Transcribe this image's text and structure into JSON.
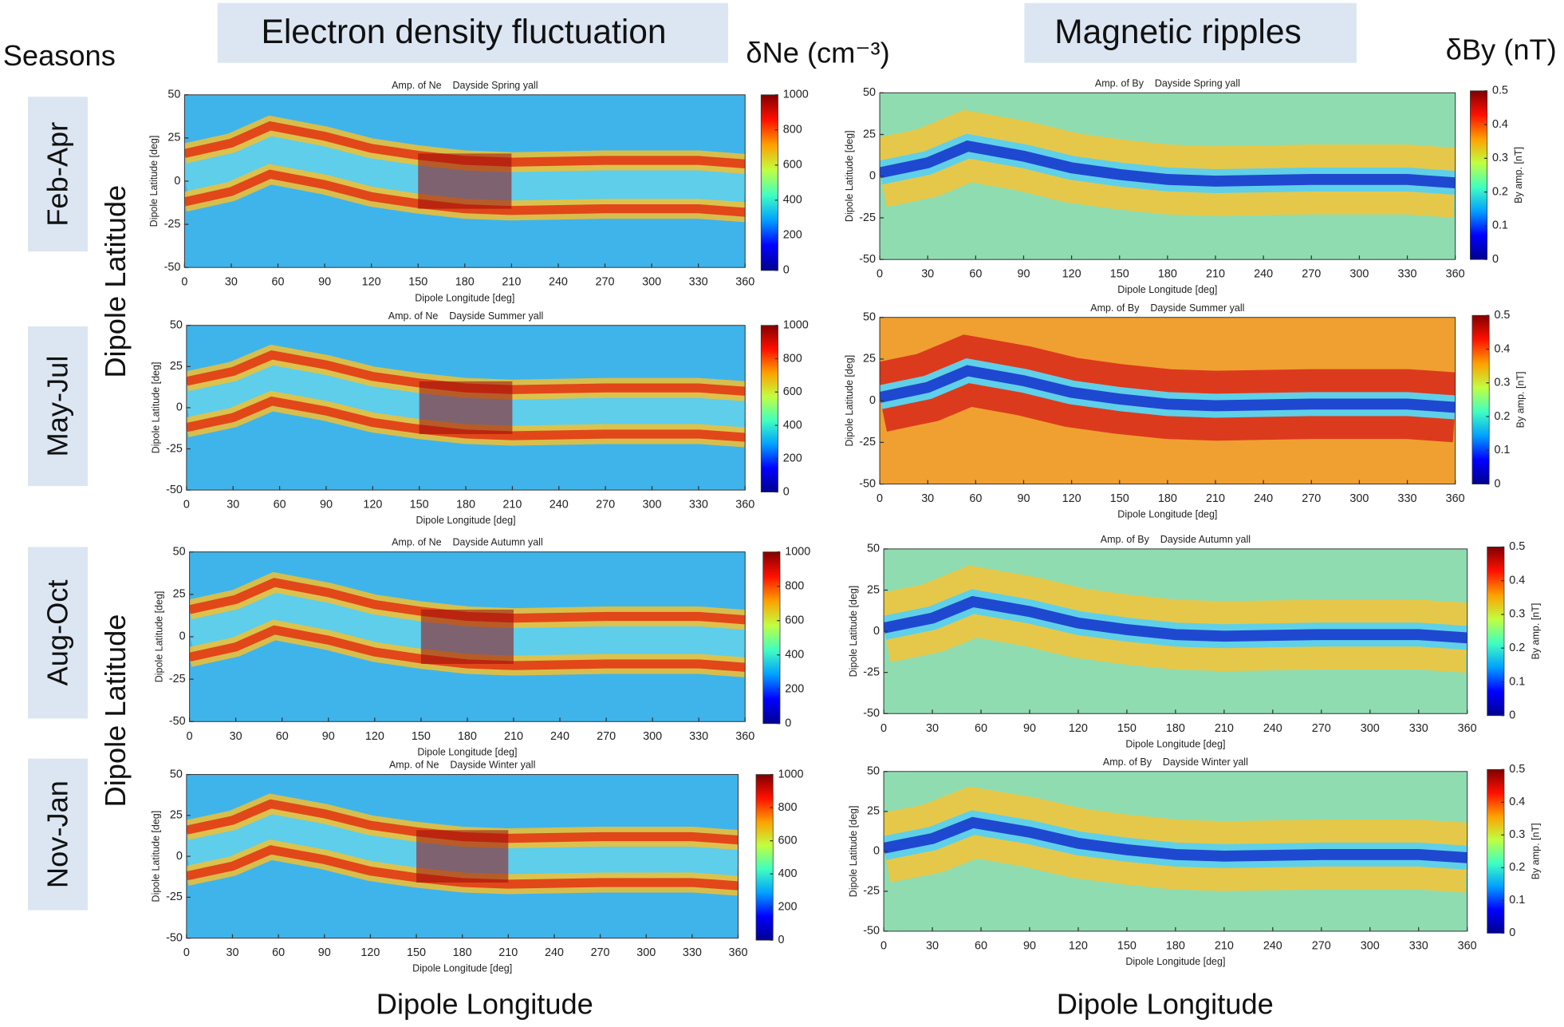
{
  "header": {
    "left_title": "Electron density fluctuation",
    "right_title": "Magnetic ripples",
    "left_unit": "δNe (cm⁻³)",
    "right_unit": "δBy (nT)",
    "seasons_label": "Seasons",
    "seasons": [
      "Feb-Apr",
      "May-Jul",
      "Aug-Oct",
      "Nov-Jan"
    ],
    "y_label": "Dipole Latitude",
    "x_label": "Dipole Longitude"
  },
  "chart_data": [
    {
      "type": "heatmap",
      "title": "Amp. of Ne    Dayside Spring yall",
      "x_label": "Dipole Longitude [deg]",
      "y_label": "Dipole Latitude [deg]",
      "xlim": [
        0,
        360
      ],
      "xticks": [
        0,
        30,
        60,
        90,
        120,
        150,
        180,
        210,
        240,
        270,
        300,
        330,
        360
      ],
      "ylim": [
        -50,
        50
      ],
      "yticks": [
        -50,
        -25,
        0,
        25,
        50
      ],
      "colormap": "jet",
      "clim": [
        0,
        1000
      ],
      "cticks": [
        0,
        200,
        400,
        600,
        800,
        1000
      ]
    },
    {
      "type": "heatmap",
      "title": "Amp. of Ne    Dayside Summer yall",
      "x_label": "Dipole Longitude [deg]",
      "y_label": "Dipole Latitude [deg]",
      "xlim": [
        0,
        360
      ],
      "xticks": [
        0,
        30,
        60,
        90,
        120,
        150,
        180,
        210,
        240,
        270,
        300,
        330,
        360
      ],
      "ylim": [
        -50,
        50
      ],
      "yticks": [
        -50,
        -25,
        0,
        25,
        50
      ],
      "colormap": "jet",
      "clim": [
        0,
        1000
      ],
      "cticks": [
        0,
        200,
        400,
        600,
        800,
        1000
      ]
    },
    {
      "type": "heatmap",
      "title": "Amp. of Ne    Dayside Autumn yall",
      "x_label": "Dipole Longitude [deg]",
      "y_label": "Dipole Latitude [deg]",
      "xlim": [
        0,
        360
      ],
      "xticks": [
        0,
        30,
        60,
        90,
        120,
        150,
        180,
        210,
        240,
        270,
        300,
        330,
        360
      ],
      "ylim": [
        -50,
        50
      ],
      "yticks": [
        -50,
        -25,
        0,
        25,
        50
      ],
      "colormap": "jet",
      "clim": [
        0,
        1000
      ],
      "cticks": [
        0,
        200,
        400,
        600,
        800,
        1000
      ]
    },
    {
      "type": "heatmap",
      "title": "Amp. of Ne    Dayside Winter yall",
      "x_label": "Dipole Longitude [deg]",
      "y_label": "Dipole Latitude [deg]",
      "xlim": [
        0,
        360
      ],
      "xticks": [
        0,
        30,
        60,
        90,
        120,
        150,
        180,
        210,
        240,
        270,
        300,
        330,
        360
      ],
      "ylim": [
        -50,
        50
      ],
      "yticks": [
        -50,
        -25,
        0,
        25,
        50
      ],
      "colormap": "jet",
      "clim": [
        0,
        1000
      ],
      "cticks": [
        0,
        200,
        400,
        600,
        800,
        1000
      ]
    },
    {
      "type": "heatmap",
      "title": "Amp. of By    Dayside Spring yall",
      "x_label": "Dipole Longitude [deg]",
      "y_label": "Dipole Latitude [deg]",
      "xlim": [
        0,
        360
      ],
      "xticks": [
        0,
        30,
        60,
        90,
        120,
        150,
        180,
        210,
        240,
        270,
        300,
        330,
        360
      ],
      "ylim": [
        -50,
        50
      ],
      "yticks": [
        -50,
        -25,
        0,
        25,
        50
      ],
      "colormap": "jet",
      "clim": [
        0,
        0.5
      ],
      "cticks": [
        0,
        0.1,
        0.2,
        0.3,
        0.4,
        0.5
      ],
      "colorbar_label": "By amp. [nT]"
    },
    {
      "type": "heatmap",
      "title": "Amp. of By    Dayside Summer yall",
      "x_label": "Dipole Longitude [deg]",
      "y_label": "Dipole Latitude [deg]",
      "xlim": [
        0,
        360
      ],
      "xticks": [
        0,
        30,
        60,
        90,
        120,
        150,
        180,
        210,
        240,
        270,
        300,
        330,
        360
      ],
      "ylim": [
        -50,
        50
      ],
      "yticks": [
        -50,
        -25,
        0,
        25,
        50
      ],
      "colormap": "jet",
      "clim": [
        0,
        0.5
      ],
      "cticks": [
        0,
        0.1,
        0.2,
        0.3,
        0.4,
        0.5
      ],
      "colorbar_label": "By amp. [nT]"
    },
    {
      "type": "heatmap",
      "title": "Amp. of By    Dayside Autumn yall",
      "x_label": "Dipole Longitude [deg]",
      "y_label": "Dipole Latitude [deg]",
      "xlim": [
        0,
        360
      ],
      "xticks": [
        0,
        30,
        60,
        90,
        120,
        150,
        180,
        210,
        240,
        270,
        300,
        330,
        360
      ],
      "ylim": [
        -50,
        50
      ],
      "yticks": [
        -50,
        -25,
        0,
        25,
        50
      ],
      "colormap": "jet",
      "clim": [
        0,
        0.5
      ],
      "cticks": [
        0,
        0.1,
        0.2,
        0.3,
        0.4,
        0.5
      ],
      "colorbar_label": "By amp. [nT]"
    },
    {
      "type": "heatmap",
      "title": "Amp. of By    Dayside Winter yall",
      "x_label": "Dipole Longitude [deg]",
      "y_label": "Dipole Latitude [deg]",
      "xlim": [
        0,
        360
      ],
      "xticks": [
        0,
        30,
        60,
        90,
        120,
        150,
        180,
        210,
        240,
        270,
        300,
        330,
        360
      ],
      "ylim": [
        -50,
        50
      ],
      "yticks": [
        -50,
        -25,
        0,
        25,
        50
      ],
      "colormap": "jet",
      "clim": [
        0,
        0.5
      ],
      "cticks": [
        0,
        0.1,
        0.2,
        0.3,
        0.4,
        0.5
      ],
      "colorbar_label": "By amp. [nT]"
    }
  ]
}
